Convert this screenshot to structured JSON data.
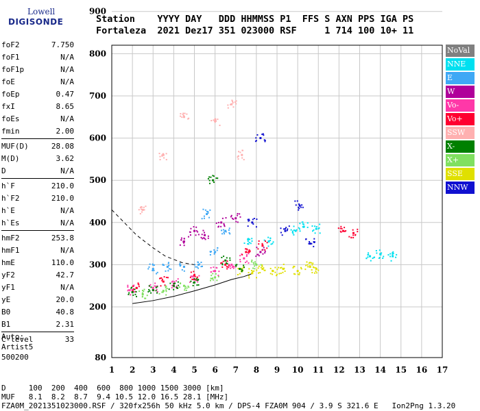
{
  "logo": {
    "line1": "Lowell",
    "line2": "DIGISONDE"
  },
  "header": {
    "line1": "Station    YYYY DAY   DDD HHMMSS P1  FFS S AXN PPS IGA PS",
    "line2": "Fortaleza  2021 Dez17 351 023000 RSF     1 714 100 10+ 11"
  },
  "params": [
    {
      "label": "foF2",
      "value": "7.750"
    },
    {
      "label": "foF1",
      "value": "N/A"
    },
    {
      "label": "foF1p",
      "value": "N/A"
    },
    {
      "label": "foE",
      "value": "N/A"
    },
    {
      "label": "foEp",
      "value": "0.47"
    },
    {
      "label": "fxI",
      "value": "8.65"
    },
    {
      "label": "foEs",
      "value": "N/A"
    },
    {
      "label": "fmin",
      "value": "2.00"
    },
    {
      "label": "MUF(D)",
      "value": "28.08"
    },
    {
      "label": "M(D)",
      "value": "3.62"
    },
    {
      "label": "D",
      "value": "N/A"
    },
    {
      "label": "h`F",
      "value": "210.0"
    },
    {
      "label": "h`F2",
      "value": "210.0"
    },
    {
      "label": "h`E",
      "value": "N/A"
    },
    {
      "label": "h`Es",
      "value": "N/A"
    },
    {
      "label": "hmF2",
      "value": "253.8"
    },
    {
      "label": "hmF1",
      "value": "N/A"
    },
    {
      "label": "hmE",
      "value": "110.0"
    },
    {
      "label": "yF2",
      "value": "42.7"
    },
    {
      "label": "yF1",
      "value": "N/A"
    },
    {
      "label": "yE",
      "value": "20.0"
    },
    {
      "label": "B0",
      "value": "40.8"
    },
    {
      "label": "B1",
      "value": "2.31"
    },
    {
      "label": "C-level",
      "value": "33"
    }
  ],
  "auto": {
    "line1": "Auto:",
    "line2": "Artist5",
    "line3": "500200"
  },
  "footer": {
    "d_row": "D     100  200  400  600  800 1000 1500 3000 [km]",
    "muf_row": "MUF   8.1  8.2  8.7  9.4 10.5 12.0 16.5 28.1 [MHz]",
    "file_row": "FZA0M_2021351023000.RSF / 320fx256h 50 kHz 5.0 km / DPS-4 FZA0M 904 / 3.9 S 321.6 E   Ion2Png 1.3.20"
  },
  "legend": [
    {
      "label": "NoVal",
      "color": "#808080"
    },
    {
      "label": "NNE",
      "color": "#00e0f0"
    },
    {
      "label": "E",
      "color": "#3fa8f5"
    },
    {
      "label": "W",
      "color": "#b0009a"
    },
    {
      "label": "Vo-",
      "color": "#ff38a8"
    },
    {
      "label": "Vo+",
      "color": "#ff0030"
    },
    {
      "label": "SSW",
      "color": "#ffb0b0"
    },
    {
      "label": "X-",
      "color": "#008000"
    },
    {
      "label": "X+",
      "color": "#80e060"
    },
    {
      "label": "SSE",
      "color": "#e0e000"
    },
    {
      "label": "NNW",
      "color": "#1010d0"
    }
  ],
  "chart_data": {
    "type": "scatter",
    "xlim": [
      1,
      17
    ],
    "ylim": [
      80,
      900
    ],
    "x_ticks": [
      "1",
      "2",
      "3",
      "4",
      "5",
      "6",
      "7",
      "8",
      "9",
      "10",
      "11",
      "12",
      "13",
      "14",
      "15",
      "16",
      "17"
    ],
    "y_ticks": [
      "80",
      "200",
      "300",
      "400",
      "500",
      "600",
      "700",
      "800",
      "900"
    ],
    "grid": true,
    "series": [
      {
        "color": "#e0e000",
        "values": [
          [
            7.3,
            285
          ],
          [
            7.8,
            280
          ],
          [
            8.3,
            290
          ],
          [
            8.8,
            285
          ],
          [
            9.3,
            290
          ],
          [
            10.0,
            285
          ],
          [
            10.6,
            295
          ],
          [
            10.9,
            290
          ]
        ]
      },
      {
        "color": "#00e0f0",
        "values": [
          [
            7.6,
            360
          ],
          [
            8.6,
            355
          ],
          [
            9.9,
            380
          ],
          [
            10.3,
            390
          ],
          [
            10.9,
            385
          ],
          [
            13.5,
            320
          ],
          [
            14.0,
            325
          ],
          [
            14.6,
            320
          ]
        ]
      },
      {
        "color": "#3fa8f5",
        "values": [
          [
            3.0,
            290
          ],
          [
            3.7,
            295
          ],
          [
            4.5,
            295
          ],
          [
            5.2,
            300
          ],
          [
            6.0,
            330
          ],
          [
            6.5,
            380
          ],
          [
            5.6,
            420
          ]
        ]
      },
      {
        "color": "#ff38a8",
        "values": [
          [
            2.0,
            240
          ],
          [
            3.0,
            245
          ],
          [
            4.0,
            255
          ],
          [
            5.0,
            265
          ],
          [
            6.0,
            285
          ],
          [
            6.8,
            300
          ],
          [
            7.4,
            315
          ]
        ]
      },
      {
        "color": "#ff0030",
        "values": [
          [
            2.2,
            245
          ],
          [
            3.5,
            260
          ],
          [
            5.0,
            275
          ],
          [
            6.5,
            300
          ],
          [
            7.5,
            330
          ],
          [
            8.3,
            345
          ],
          [
            12.2,
            380
          ],
          [
            12.7,
            375
          ]
        ]
      },
      {
        "color": "#b0009a",
        "values": [
          [
            4.5,
            355
          ],
          [
            5.0,
            380
          ],
          [
            5.5,
            370
          ],
          [
            6.3,
            400
          ],
          [
            7.0,
            410
          ],
          [
            8.2,
            330
          ]
        ]
      },
      {
        "color": "#008000",
        "values": [
          [
            2.0,
            235
          ],
          [
            3.0,
            240
          ],
          [
            4.0,
            250
          ],
          [
            5.0,
            258
          ],
          [
            5.9,
            500
          ],
          [
            6.5,
            310
          ],
          [
            7.2,
            290
          ]
        ]
      },
      {
        "color": "#80e060",
        "values": [
          [
            2.5,
            230
          ],
          [
            3.5,
            238
          ],
          [
            4.5,
            250
          ],
          [
            6.0,
            270
          ],
          [
            8.0,
            300
          ]
        ]
      },
      {
        "color": "#1010d0",
        "values": [
          [
            7.8,
            400
          ],
          [
            8.2,
            600
          ],
          [
            9.4,
            380
          ],
          [
            10.1,
            440
          ],
          [
            10.6,
            350
          ]
        ]
      },
      {
        "color": "#ffb0b0",
        "values": [
          [
            2.5,
            430
          ],
          [
            3.5,
            560
          ],
          [
            4.5,
            650
          ],
          [
            6.0,
            640
          ],
          [
            6.8,
            680
          ],
          [
            7.3,
            560
          ]
        ]
      }
    ],
    "overlay_lines": [
      {
        "style": "solid",
        "values": [
          [
            2.0,
            208
          ],
          [
            3.0,
            215
          ],
          [
            4.0,
            225
          ],
          [
            5.0,
            238
          ],
          [
            6.0,
            252
          ],
          [
            6.8,
            265
          ],
          [
            7.4,
            272
          ],
          [
            7.75,
            278
          ]
        ]
      },
      {
        "style": "dashed",
        "values": [
          [
            1.0,
            430
          ],
          [
            1.6,
            400
          ],
          [
            2.2,
            370
          ],
          [
            3.0,
            340
          ],
          [
            3.6,
            320
          ],
          [
            4.4,
            305
          ],
          [
            5.0,
            300
          ]
        ]
      }
    ]
  }
}
